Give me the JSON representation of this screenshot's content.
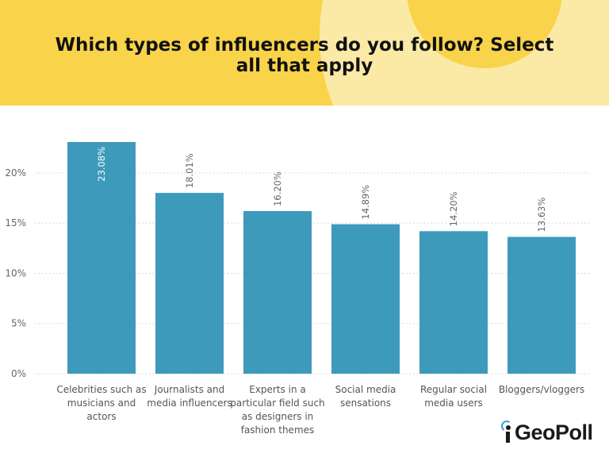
{
  "header": {
    "title_line1": "Which types of influencers do you follow? Select",
    "title_line2": "all that apply"
  },
  "chart_data": {
    "type": "bar",
    "title": "Which types of influencers do you follow? Select all that apply",
    "categories": [
      [
        "Celebrities such as",
        "musicians and",
        "actors"
      ],
      [
        "Journalists and",
        "media influencers"
      ],
      [
        "Experts in a",
        "particular field such",
        "as designers in",
        "fashion themes"
      ],
      [
        "Social media",
        "sensations"
      ],
      [
        "Regular social",
        "media users"
      ],
      [
        "Bloggers/vloggers"
      ]
    ],
    "values": [
      23.08,
      18.01,
      16.2,
      14.89,
      14.2,
      13.63
    ],
    "value_labels": [
      "23.08%",
      "18.01%",
      "16.20%",
      "14.89%",
      "14.20%",
      "13.63%"
    ],
    "yticks": [
      0,
      5,
      10,
      15,
      20
    ],
    "ytick_labels": [
      "0%",
      "5%",
      "10%",
      "15%",
      "20%"
    ],
    "ylim": [
      0,
      23.08
    ],
    "grid": true,
    "bar_color": "#3d9abb"
  },
  "logo": {
    "text": "GeoPoll",
    "icon": "geopoll-signal-icon"
  }
}
